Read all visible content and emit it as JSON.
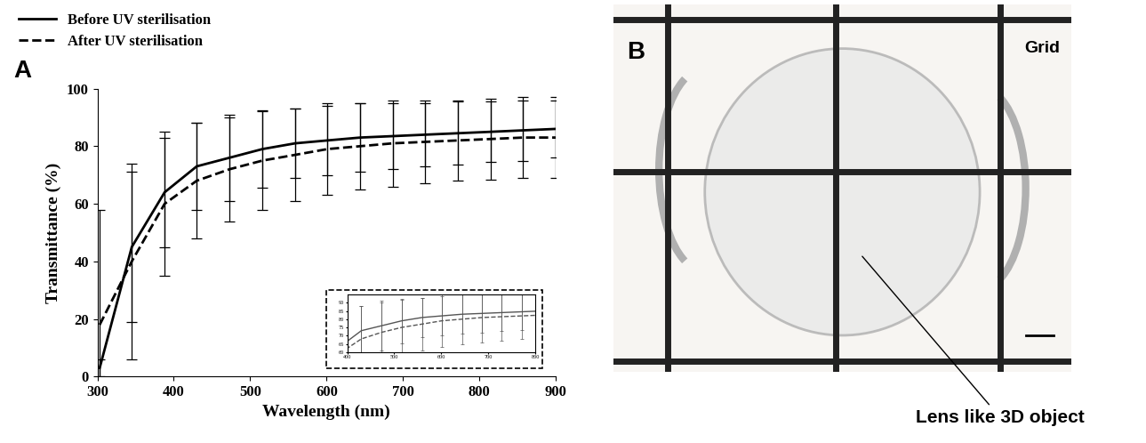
{
  "chart_data": {
    "type": "line",
    "panel_label": "A",
    "x_label": "Wavelength (nm)",
    "y_label": "Transmittance (%)",
    "x": [
      303,
      345,
      388,
      430,
      473,
      516,
      559,
      601,
      644,
      687,
      729,
      772,
      815,
      857,
      900
    ],
    "series": [
      {
        "name": "Before UV sterilisation",
        "color": "#000000",
        "line_style": "solid",
        "values": [
          3,
          45,
          64,
          73,
          76,
          79,
          81,
          82,
          83,
          83.5,
          84,
          84.5,
          85,
          85.5,
          86
        ],
        "errors": [
          3,
          26,
          19,
          15,
          15,
          13.5,
          12,
          12,
          12,
          11.5,
          11,
          11,
          10.5,
          10.5,
          10
        ]
      },
      {
        "name": "After UV sterilisation",
        "color": "#000000",
        "line_style": "dashed",
        "values": [
          18,
          40,
          60,
          68,
          72,
          75,
          77,
          79,
          80,
          81,
          81.5,
          82,
          82.5,
          83,
          83
        ],
        "errors": [
          40,
          34,
          25,
          20,
          18,
          17,
          16,
          16,
          15,
          15,
          14.5,
          14,
          14,
          14,
          14
        ]
      }
    ],
    "xlim": [
      300,
      900
    ],
    "ylim": [
      0,
      100
    ],
    "xticks": [
      300,
      400,
      500,
      600,
      700,
      800,
      900
    ],
    "yticks": [
      0,
      20,
      40,
      60,
      80,
      100
    ],
    "legend": "upper left",
    "inset": {
      "xlim": [
        400,
        800
      ],
      "ylim": [
        60,
        95
      ],
      "xticks": [
        400,
        500,
        600,
        700,
        800
      ],
      "yticks": [
        60,
        65,
        70,
        75,
        80,
        85,
        90
      ]
    }
  },
  "image_panel": {
    "panel_label": "B",
    "grid_label": "Grid",
    "object_label": "Lens like 3D object"
  }
}
